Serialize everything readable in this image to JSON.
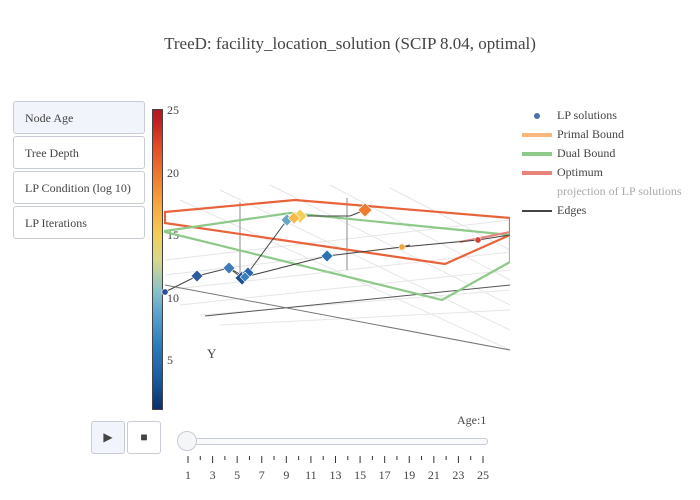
{
  "title": "TreeD: facility_location_solution (SCIP 8.04, optimal)",
  "menu": {
    "items": [
      {
        "label": "Node Age",
        "active": true
      },
      {
        "label": "Tree Depth",
        "active": false
      },
      {
        "label": "LP Condition (log 10)",
        "active": false
      },
      {
        "label": "LP Iterations",
        "active": false
      }
    ]
  },
  "colorbar": {
    "ticks": [
      "25",
      "20",
      "15",
      "10",
      "5"
    ],
    "colors": [
      "#08306b",
      "#2d7fbc",
      "#8cc3c8",
      "#f2cf58",
      "#ef7a2e",
      "#b01a20"
    ]
  },
  "scene": {
    "axis_label_y": "Y",
    "primal_color": "#f7b67a",
    "dual_color": "#8ec98a",
    "optimum_color": "#e8827a",
    "edge_color": "#444444",
    "nodes": [
      {
        "age": 1,
        "color": "#2a4f93"
      },
      {
        "age": 2,
        "color": "#2e5b9c"
      },
      {
        "age": 3,
        "color": "#3e7bb8"
      },
      {
        "age": 4,
        "color": "#1d4e8f"
      },
      {
        "age": 5,
        "color": "#2968a8"
      },
      {
        "age": 6,
        "color": "#3a7fbf"
      },
      {
        "age": 7,
        "color": "#2b74b4"
      },
      {
        "age": 8,
        "color": "#6aa5c4"
      },
      {
        "age": 9,
        "color": "#f2cf58"
      },
      {
        "age": 10,
        "color": "#f6b94a"
      },
      {
        "age": 11,
        "color": "#ef7a2e"
      },
      {
        "age": 12,
        "color": "#d2433b"
      },
      {
        "age": 13,
        "color": "#f0a73c"
      }
    ]
  },
  "legend": {
    "items": [
      {
        "label": "LP solutions",
        "kind": "dot"
      },
      {
        "label": "Primal Bound",
        "kind": "primal"
      },
      {
        "label": "Dual Bound",
        "kind": "dual"
      },
      {
        "label": "Optimum",
        "kind": "optimum"
      },
      {
        "label": "projection of LP solutions",
        "kind": "none"
      },
      {
        "label": "Edges",
        "kind": "edge"
      }
    ]
  },
  "animation": {
    "play_icon": "play-icon",
    "stop_icon": "stop-icon",
    "play_symbol": "▶",
    "stop_symbol": "■"
  },
  "slider": {
    "current_label": "Age:1",
    "current_value": 1,
    "min": 1,
    "max": 25,
    "ticks": [
      "1",
      "3",
      "5",
      "7",
      "9",
      "11",
      "13",
      "15",
      "17",
      "19",
      "21",
      "23",
      "25"
    ]
  }
}
